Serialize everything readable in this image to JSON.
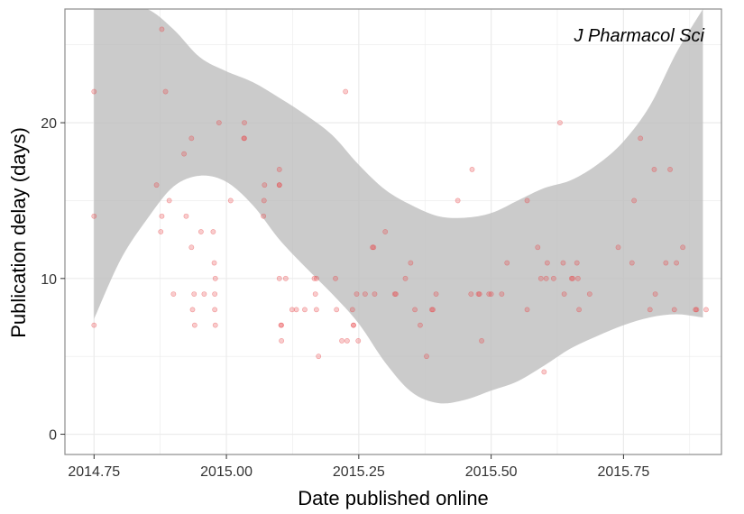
{
  "chart_data": {
    "type": "scatter",
    "title": "",
    "annotation": "J Pharmacol Sci",
    "xlabel": "Date published online",
    "ylabel": "Publication delay (days)",
    "xlim": [
      2014.695,
      2015.935
    ],
    "ylim": [
      -1.3,
      27.3
    ],
    "x_ticks": [
      2014.75,
      2015.0,
      2015.25,
      2015.5,
      2015.75
    ],
    "x_tick_labels": [
      "2014.75",
      "2015.00",
      "2015.25",
      "2015.50",
      "2015.75"
    ],
    "y_ticks": [
      0,
      10,
      20
    ],
    "y_tick_labels": [
      "0",
      "10",
      "20"
    ],
    "grid": true,
    "colors": {
      "points": "#e8474a",
      "band": "#bdbdbd",
      "grid": "#ebebeb",
      "panel_border": "#8c8c8c"
    },
    "points": [
      {
        "x": 2014.75,
        "y": 22
      },
      {
        "x": 2014.75,
        "y": 14
      },
      {
        "x": 2014.75,
        "y": 7
      },
      {
        "x": 2014.868,
        "y": 16
      },
      {
        "x": 2014.878,
        "y": 26
      },
      {
        "x": 2014.878,
        "y": 14
      },
      {
        "x": 2014.876,
        "y": 13
      },
      {
        "x": 2014.885,
        "y": 22
      },
      {
        "x": 2014.892,
        "y": 15
      },
      {
        "x": 2014.9,
        "y": 9
      },
      {
        "x": 2014.92,
        "y": 18
      },
      {
        "x": 2014.924,
        "y": 14
      },
      {
        "x": 2014.934,
        "y": 19
      },
      {
        "x": 2014.934,
        "y": 12
      },
      {
        "x": 2014.936,
        "y": 8
      },
      {
        "x": 2014.939,
        "y": 9
      },
      {
        "x": 2014.94,
        "y": 7
      },
      {
        "x": 2014.952,
        "y": 13
      },
      {
        "x": 2014.958,
        "y": 9
      },
      {
        "x": 2014.975,
        "y": 13
      },
      {
        "x": 2014.977,
        "y": 11
      },
      {
        "x": 2014.979,
        "y": 10
      },
      {
        "x": 2014.978,
        "y": 9
      },
      {
        "x": 2014.978,
        "y": 8
      },
      {
        "x": 2014.979,
        "y": 7
      },
      {
        "x": 2014.986,
        "y": 20
      },
      {
        "x": 2015.008,
        "y": 15
      },
      {
        "x": 2015.034,
        "y": 20
      },
      {
        "x": 2015.033,
        "y": 19
      },
      {
        "x": 2015.034,
        "y": 19
      },
      {
        "x": 2015.072,
        "y": 16
      },
      {
        "x": 2015.071,
        "y": 15
      },
      {
        "x": 2015.07,
        "y": 14
      },
      {
        "x": 2015.1,
        "y": 17
      },
      {
        "x": 2015.1,
        "y": 16
      },
      {
        "x": 2015.1,
        "y": 16
      },
      {
        "x": 2015.1,
        "y": 10
      },
      {
        "x": 2015.103,
        "y": 7
      },
      {
        "x": 2015.104,
        "y": 7
      },
      {
        "x": 2015.104,
        "y": 6
      },
      {
        "x": 2015.112,
        "y": 10
      },
      {
        "x": 2015.124,
        "y": 8
      },
      {
        "x": 2015.132,
        "y": 8
      },
      {
        "x": 2015.148,
        "y": 8
      },
      {
        "x": 2015.166,
        "y": 10
      },
      {
        "x": 2015.17,
        "y": 10
      },
      {
        "x": 2015.168,
        "y": 9
      },
      {
        "x": 2015.17,
        "y": 8
      },
      {
        "x": 2015.174,
        "y": 5
      },
      {
        "x": 2015.206,
        "y": 10
      },
      {
        "x": 2015.208,
        "y": 8
      },
      {
        "x": 2015.218,
        "y": 6
      },
      {
        "x": 2015.225,
        "y": 22
      },
      {
        "x": 2015.228,
        "y": 6
      },
      {
        "x": 2015.238,
        "y": 8
      },
      {
        "x": 2015.24,
        "y": 7
      },
      {
        "x": 2015.24,
        "y": 7
      },
      {
        "x": 2015.246,
        "y": 9
      },
      {
        "x": 2015.249,
        "y": 6
      },
      {
        "x": 2015.262,
        "y": 9
      },
      {
        "x": 2015.276,
        "y": 12
      },
      {
        "x": 2015.278,
        "y": 12
      },
      {
        "x": 2015.28,
        "y": 9
      },
      {
        "x": 2015.3,
        "y": 13
      },
      {
        "x": 2015.318,
        "y": 9
      },
      {
        "x": 2015.32,
        "y": 9
      },
      {
        "x": 2015.338,
        "y": 10
      },
      {
        "x": 2015.348,
        "y": 11
      },
      {
        "x": 2015.356,
        "y": 8
      },
      {
        "x": 2015.366,
        "y": 7
      },
      {
        "x": 2015.378,
        "y": 5
      },
      {
        "x": 2015.388,
        "y": 8
      },
      {
        "x": 2015.39,
        "y": 8
      },
      {
        "x": 2015.396,
        "y": 9
      },
      {
        "x": 2015.437,
        "y": 15
      },
      {
        "x": 2015.462,
        "y": 9
      },
      {
        "x": 2015.464,
        "y": 17
      },
      {
        "x": 2015.476,
        "y": 9
      },
      {
        "x": 2015.478,
        "y": 9
      },
      {
        "x": 2015.482,
        "y": 6
      },
      {
        "x": 2015.496,
        "y": 9
      },
      {
        "x": 2015.5,
        "y": 9
      },
      {
        "x": 2015.52,
        "y": 9
      },
      {
        "x": 2015.53,
        "y": 11
      },
      {
        "x": 2015.568,
        "y": 15
      },
      {
        "x": 2015.568,
        "y": 8
      },
      {
        "x": 2015.588,
        "y": 12
      },
      {
        "x": 2015.594,
        "y": 10
      },
      {
        "x": 2015.6,
        "y": 4
      },
      {
        "x": 2015.604,
        "y": 10
      },
      {
        "x": 2015.606,
        "y": 11
      },
      {
        "x": 2015.618,
        "y": 10
      },
      {
        "x": 2015.63,
        "y": 20
      },
      {
        "x": 2015.636,
        "y": 11
      },
      {
        "x": 2015.638,
        "y": 9
      },
      {
        "x": 2015.652,
        "y": 10
      },
      {
        "x": 2015.654,
        "y": 10
      },
      {
        "x": 2015.662,
        "y": 11
      },
      {
        "x": 2015.664,
        "y": 10
      },
      {
        "x": 2015.666,
        "y": 8
      },
      {
        "x": 2015.686,
        "y": 9
      },
      {
        "x": 2015.74,
        "y": 12
      },
      {
        "x": 2015.766,
        "y": 11
      },
      {
        "x": 2015.77,
        "y": 15
      },
      {
        "x": 2015.782,
        "y": 19
      },
      {
        "x": 2015.8,
        "y": 8
      },
      {
        "x": 2015.808,
        "y": 17
      },
      {
        "x": 2015.81,
        "y": 9
      },
      {
        "x": 2015.83,
        "y": 11
      },
      {
        "x": 2015.838,
        "y": 17
      },
      {
        "x": 2015.846,
        "y": 8
      },
      {
        "x": 2015.85,
        "y": 11
      },
      {
        "x": 2015.862,
        "y": 12
      },
      {
        "x": 2015.886,
        "y": 8
      },
      {
        "x": 2015.888,
        "y": 8
      },
      {
        "x": 2015.906,
        "y": 8
      }
    ],
    "confidence_band": {
      "x": [
        2014.75,
        2014.8,
        2014.85,
        2014.9,
        2014.95,
        2015.0,
        2015.05,
        2015.1,
        2015.15,
        2015.2,
        2015.25,
        2015.3,
        2015.35,
        2015.4,
        2015.45,
        2015.5,
        2015.55,
        2015.6,
        2015.65,
        2015.7,
        2015.75,
        2015.8,
        2015.85,
        2015.9
      ],
      "lower": [
        7.4,
        11.2,
        13.8,
        15.9,
        16.6,
        16.2,
        14.7,
        12.5,
        10.7,
        9.0,
        7.1,
        4.6,
        2.7,
        2.0,
        2.2,
        2.8,
        3.4,
        4.4,
        5.5,
        6.3,
        7.0,
        7.5,
        7.7,
        7.5
      ],
      "upper": [
        27.3,
        27.3,
        27.3,
        26.0,
        24.2,
        23.3,
        22.6,
        21.6,
        20.5,
        19.2,
        17.3,
        15.7,
        14.7,
        14.0,
        13.9,
        14.2,
        15.0,
        15.8,
        16.3,
        17.3,
        18.8,
        21.1,
        24.5,
        27.3
      ]
    }
  }
}
